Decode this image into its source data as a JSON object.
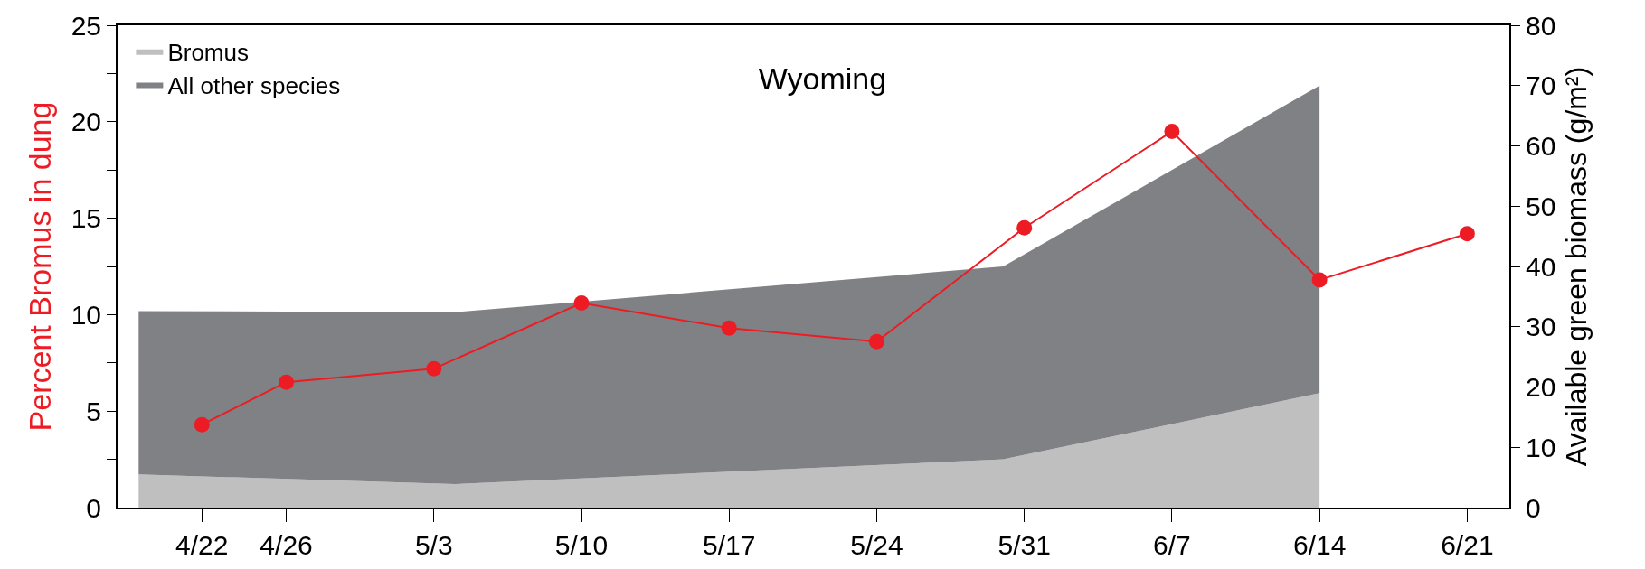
{
  "chart_data": {
    "type": "area",
    "title": "Wyoming",
    "ylabel": "Percent Bromus in dung",
    "y2label": "Available green biomass (g/m²)",
    "stacked": true,
    "legend": "top left",
    "grid": false,
    "line_style": "solid",
    "series": [
      {
        "name": "Bromus",
        "color": "#bfbfbf",
        "axis": "y2",
        "x": [
          "--04-19",
          "--05-04",
          "--05-30",
          "--06-14"
        ],
        "values": [
          5.5,
          3.9,
          8,
          19
        ]
      },
      {
        "name": "All other species",
        "color": "#808184",
        "axis": "y2",
        "x": [
          "--04-19",
          "--05-04",
          "--05-30",
          "--06-14"
        ],
        "values": [
          27.1,
          28.5,
          32,
          51
        ]
      },
      {
        "type": "line",
        "marker": "circle",
        "color": "#ed1c24",
        "axis": "y",
        "x": [
          "--04-22",
          "--04-26",
          "--05-03",
          "--05-10",
          "--05-17",
          "--05-24",
          "--05-31",
          "--06-07",
          "--06-14",
          "--06-21"
        ],
        "values": [
          4.3,
          6.5,
          7.2,
          10.6,
          9.3,
          8.6,
          14.5,
          19.5,
          11.8,
          14.2
        ]
      }
    ],
    "xlim": [
      "--04-18",
      "--06-23"
    ],
    "xticks": [
      {
        "value": "--04-22",
        "label": "4/22"
      },
      {
        "value": "--04-26",
        "label": "4/26"
      },
      {
        "value": "--05-03",
        "label": "5/3"
      },
      {
        "value": "--05-10",
        "label": "5/10"
      },
      {
        "value": "--05-17",
        "label": "5/17"
      },
      {
        "value": "--05-24",
        "label": "5/24"
      },
      {
        "value": "--05-31",
        "label": "5/31"
      },
      {
        "value": "--06-07",
        "label": "6/7"
      },
      {
        "value": "--06-14",
        "label": "6/14"
      },
      {
        "value": "--06-21",
        "label": "6/21"
      }
    ],
    "ylim": [
      0,
      25
    ],
    "yticks": [
      0,
      {
        "value": 2.5,
        "label": null
      },
      5,
      {
        "value": 7.5,
        "label": null
      },
      10,
      {
        "value": 12.5,
        "label": null
      },
      15,
      {
        "value": 17.5,
        "label": null
      },
      20,
      {
        "value": 22.5,
        "label": null
      },
      25
    ],
    "y2lim": [
      0,
      80
    ],
    "y2ticks": [
      0,
      10,
      20,
      30,
      40,
      50,
      60,
      70,
      80
    ]
  }
}
